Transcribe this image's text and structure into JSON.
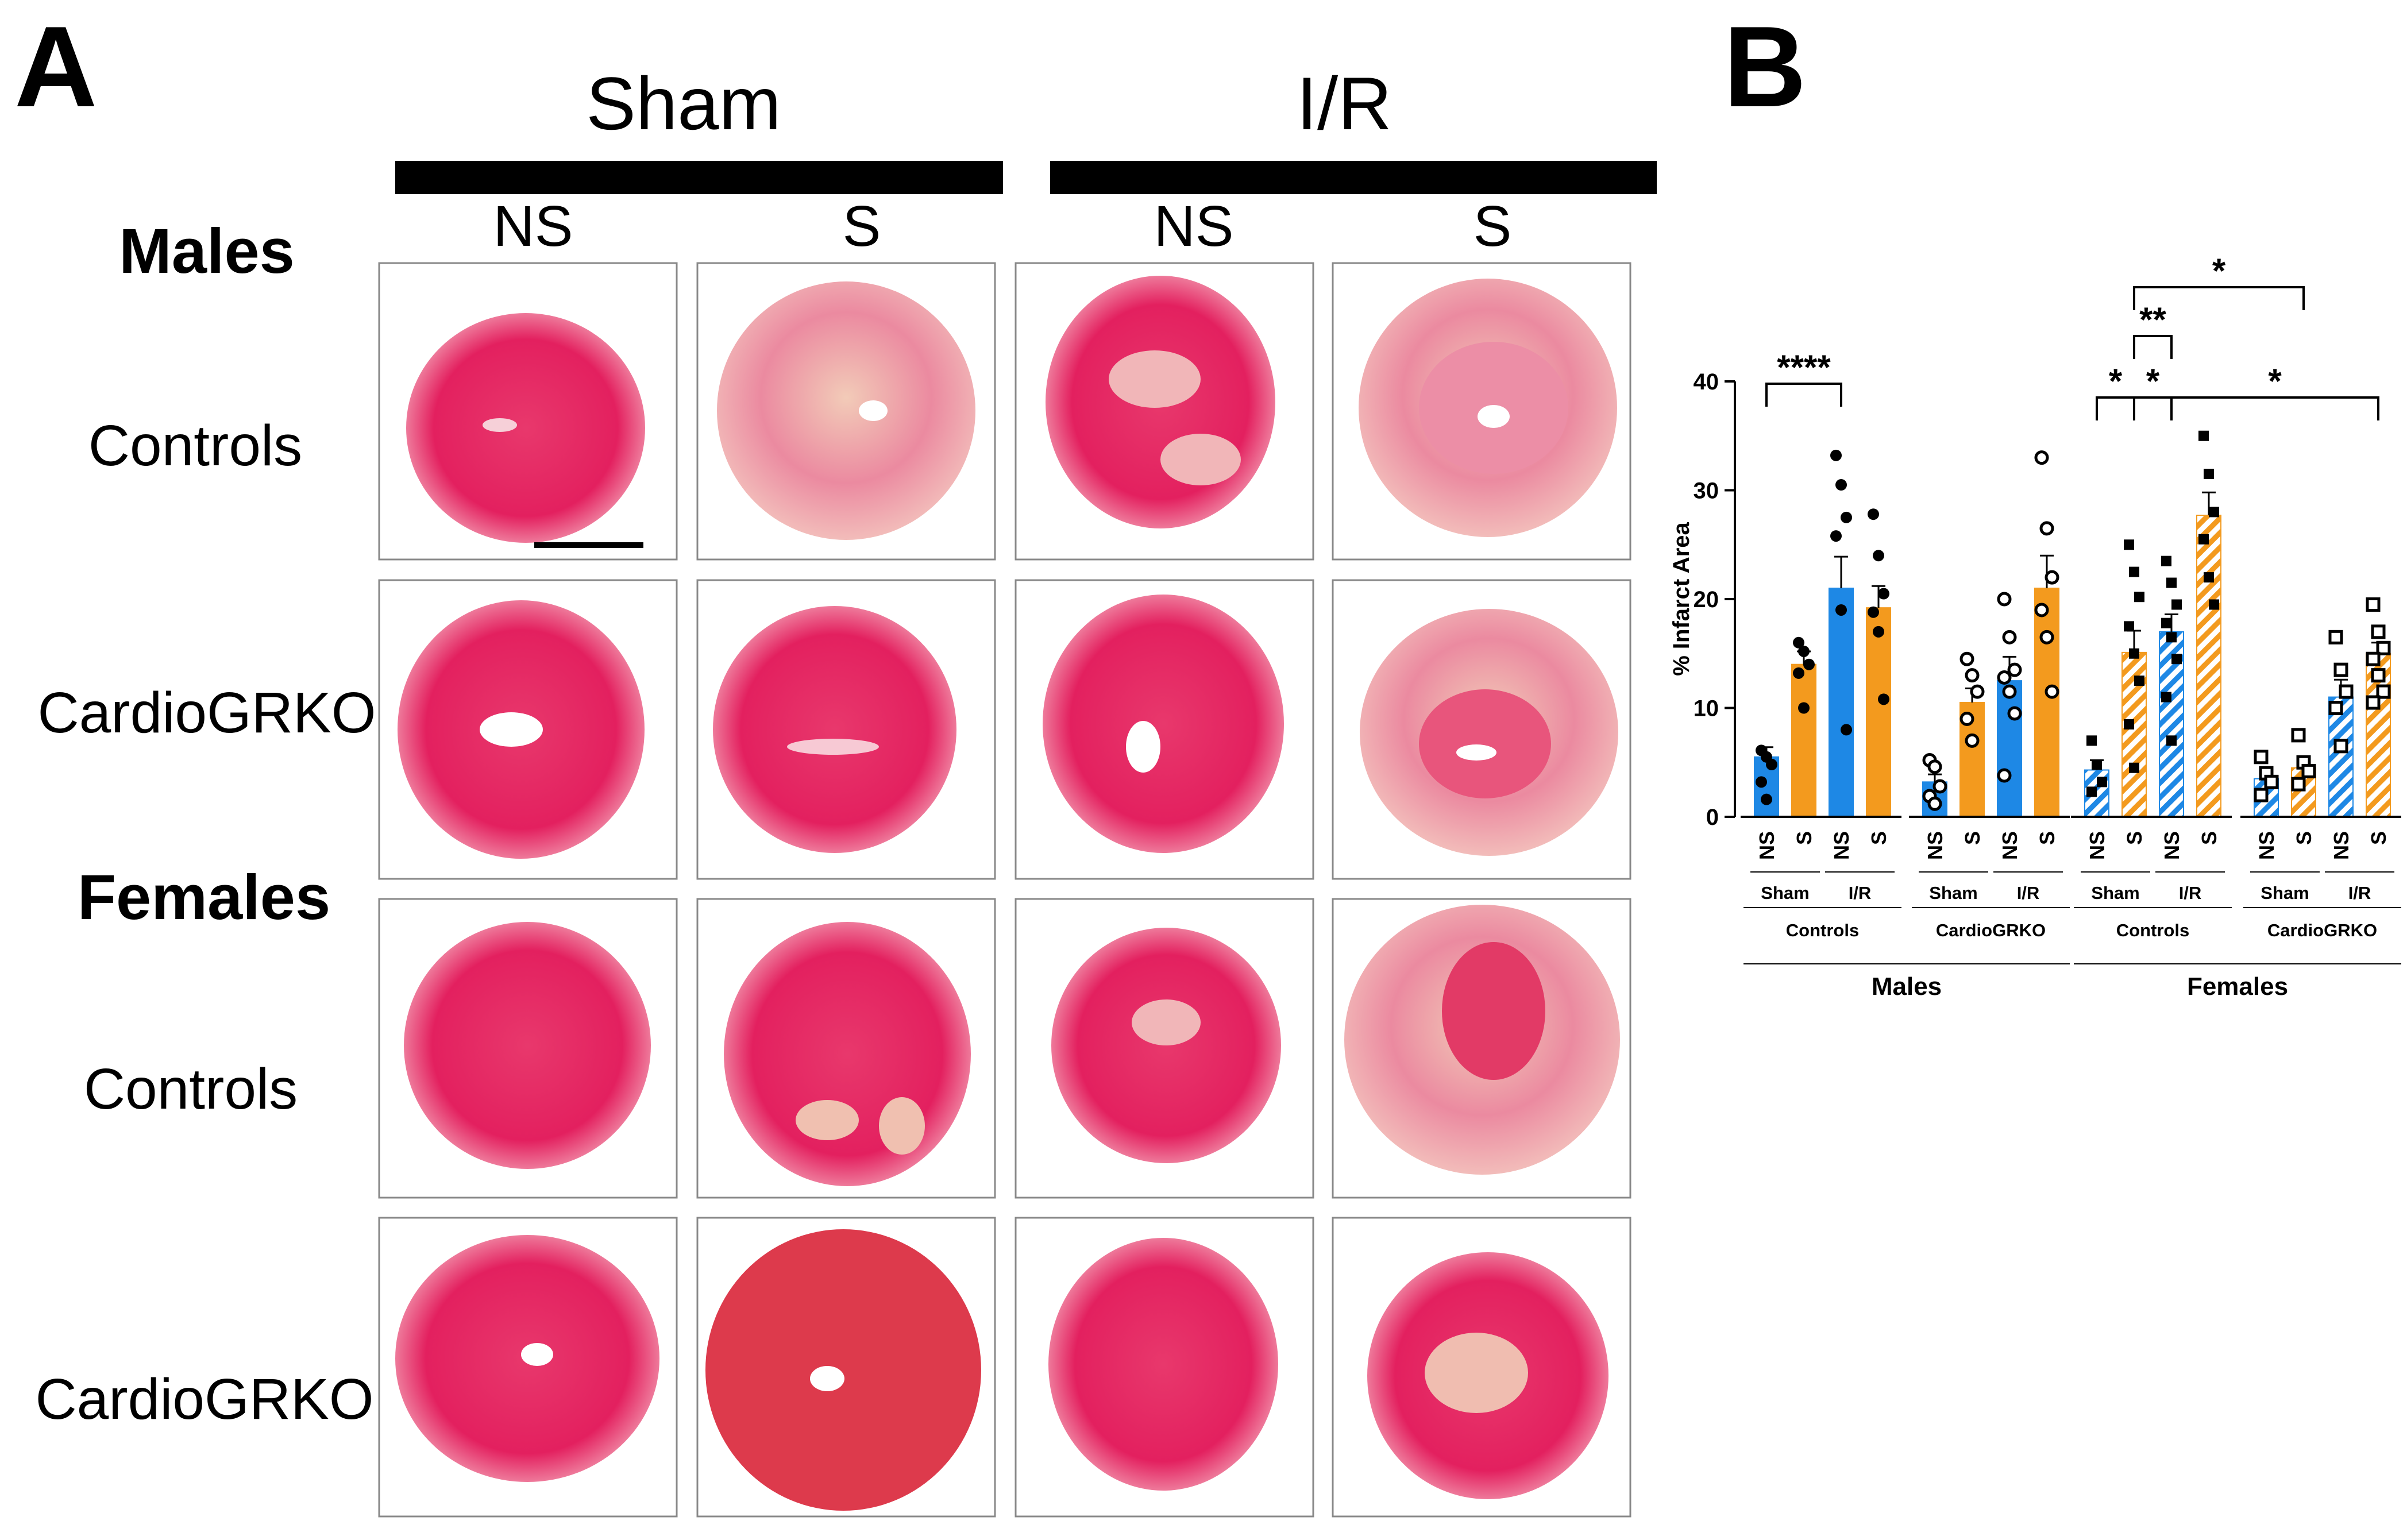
{
  "panel_a": {
    "letter": "A",
    "groups": [
      "Sham",
      "I/R"
    ],
    "columns": [
      "NS",
      "S",
      "NS",
      "S"
    ],
    "sections": [
      "Males",
      "Females"
    ],
    "rows": [
      "Controls",
      "CardioGRKO",
      "Controls",
      "CardioGRKO"
    ]
  },
  "panel_b": {
    "letter": "B",
    "sex_labels": [
      "Males",
      "Females"
    ],
    "genotype_labels": [
      "Controls",
      "CardioGRKO",
      "Controls",
      "CardioGRKO"
    ],
    "condition_labels": [
      "Sham",
      "I/R",
      "Sham",
      "I/R",
      "Sham",
      "I/R",
      "Sham",
      "I/R"
    ]
  },
  "colors": {
    "ns_bar": "#1e88e5",
    "s_bar": "#f39a1e",
    "tissue_dark": "#e3205f",
    "tissue_pale": "#f0c4b4"
  },
  "chart_data": {
    "type": "bar",
    "title": "",
    "ylabel": "% Infarct Area",
    "ylim": [
      0,
      40
    ],
    "yticks": [
      0,
      10,
      20,
      30,
      40
    ],
    "categories": [
      "NS",
      "S",
      "NS",
      "S",
      "NS",
      "S",
      "NS",
      "S",
      "NS",
      "S",
      "NS",
      "S",
      "NS",
      "S",
      "NS",
      "S"
    ],
    "groups": [
      {
        "sex": "Males",
        "genotype": "Controls",
        "bars": [
          {
            "label": "NS",
            "condition": "Sham",
            "value": 5.5,
            "sem": 0.9,
            "pattern": "solid",
            "color": "blue",
            "points": [
              6.1,
              5.5,
              4.8,
              3.2,
              1.6
            ]
          },
          {
            "label": "S",
            "condition": "Sham",
            "value": 14.0,
            "sem": 1.2,
            "pattern": "solid",
            "color": "orange",
            "points": [
              16.0,
              15.2,
              14.0,
              13.2,
              10.0
            ]
          },
          {
            "label": "NS",
            "condition": "I/R",
            "value": 21.0,
            "sem": 2.9,
            "pattern": "solid",
            "color": "blue",
            "points": [
              33.2,
              30.5,
              27.5,
              25.8,
              19.0,
              8.0
            ]
          },
          {
            "label": "S",
            "condition": "I/R",
            "value": 19.2,
            "sem": 2.0,
            "pattern": "solid",
            "color": "orange",
            "points": [
              27.8,
              24.0,
              20.5,
              18.8,
              17.0,
              10.8
            ]
          }
        ]
      },
      {
        "sex": "Males",
        "genotype": "CardioGRKO",
        "bars": [
          {
            "label": "NS",
            "condition": "Sham",
            "value": 3.2,
            "sem": 0.7,
            "pattern": "solid",
            "color": "blue",
            "points": [
              5.2,
              4.6,
              2.8,
              1.9,
              1.2
            ]
          },
          {
            "label": "S",
            "condition": "Sham",
            "value": 10.5,
            "sem": 1.3,
            "pattern": "solid",
            "color": "orange",
            "points": [
              14.5,
              13.0,
              11.5,
              9.0,
              7.0
            ]
          },
          {
            "label": "NS",
            "condition": "I/R",
            "value": 12.5,
            "sem": 2.2,
            "pattern": "solid",
            "color": "blue",
            "points": [
              20.0,
              16.5,
              13.5,
              12.8,
              11.5,
              9.5,
              3.8
            ]
          },
          {
            "label": "S",
            "condition": "I/R",
            "value": 21.0,
            "sem": 3.0,
            "pattern": "solid",
            "color": "orange",
            "points": [
              33.0,
              26.5,
              22.0,
              19.0,
              16.5,
              11.5
            ]
          }
        ]
      },
      {
        "sex": "Females",
        "genotype": "Controls",
        "bars": [
          {
            "label": "NS",
            "condition": "Sham",
            "value": 4.3,
            "sem": 0.9,
            "pattern": "hatched",
            "color": "blue",
            "points": [
              7.0,
              4.8,
              3.2,
              2.3
            ]
          },
          {
            "label": "S",
            "condition": "Sham",
            "value": 15.1,
            "sem": 2.0,
            "pattern": "hatched",
            "color": "orange",
            "points": [
              25.0,
              22.5,
              20.2,
              17.5,
              15.0,
              12.5,
              8.5,
              4.5
            ]
          },
          {
            "label": "NS",
            "condition": "I/R",
            "value": 17.0,
            "sem": 1.6,
            "pattern": "hatched",
            "color": "blue",
            "points": [
              23.5,
              21.5,
              19.5,
              17.8,
              16.5,
              14.5,
              11.0,
              7.0
            ]
          },
          {
            "label": "S",
            "condition": "I/R",
            "value": 27.7,
            "sem": 2.1,
            "pattern": "hatched",
            "color": "orange",
            "points": [
              35.0,
              31.5,
              28.0,
              25.5,
              22.0,
              19.5
            ]
          }
        ]
      },
      {
        "sex": "Females",
        "genotype": "CardioGRKO",
        "bars": [
          {
            "label": "NS",
            "condition": "Sham",
            "value": 3.5,
            "sem": 0.6,
            "pattern": "hatched",
            "color": "blue",
            "points": [
              5.5,
              4.0,
              3.2,
              2.0
            ]
          },
          {
            "label": "S",
            "condition": "Sham",
            "value": 4.5,
            "sem": 0.7,
            "pattern": "hatched",
            "color": "orange",
            "points": [
              7.5,
              5.0,
              4.2,
              3.0
            ]
          },
          {
            "label": "NS",
            "condition": "I/R",
            "value": 11.0,
            "sem": 1.6,
            "pattern": "hatched",
            "color": "blue",
            "points": [
              16.5,
              13.5,
              11.5,
              10.0,
              6.5
            ]
          },
          {
            "label": "S",
            "condition": "I/R",
            "value": 15.0,
            "sem": 1.0,
            "pattern": "hatched",
            "color": "orange",
            "points": [
              19.5,
              17.0,
              15.5,
              14.5,
              13.0,
              11.5,
              10.5
            ]
          }
        ]
      }
    ],
    "significance": [
      {
        "from": 0,
        "to": 2,
        "label": "****"
      },
      {
        "from": 8,
        "to": 9,
        "label": "*"
      },
      {
        "from": 9,
        "to": 10,
        "label": "*"
      },
      {
        "from": 9,
        "to": 10,
        "label": "**"
      },
      {
        "from": 9,
        "to": 13,
        "label": "*"
      },
      {
        "from": 10,
        "to": 15,
        "label": "*"
      }
    ]
  }
}
